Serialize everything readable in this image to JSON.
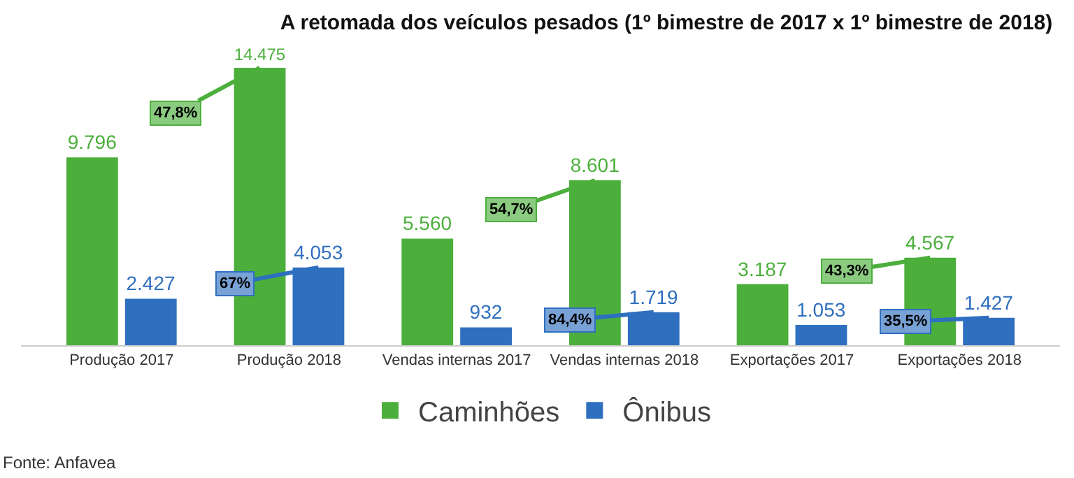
{
  "chart_data": {
    "type": "bar",
    "title": "A retomada dos veículos pesados (1º bimestre de 2017 x 1º bimestre de 2018)",
    "categories": [
      "Produção 2017",
      "Produção 2018",
      "Vendas internas 2017",
      "Vendas internas 2018",
      "Exportações 2017",
      "Exportações 2018"
    ],
    "series": [
      {
        "name": "Caminhões",
        "color": "#4caf3c",
        "values": [
          9796,
          14475,
          5560,
          8601,
          3187,
          4567
        ],
        "value_labels": [
          "9.796",
          "14.475",
          "5.560",
          "8.601",
          "3.187",
          "4.567"
        ]
      },
      {
        "name": "Ônibus",
        "color": "#2f6fbf",
        "values": [
          2427,
          4053,
          932,
          1719,
          1053,
          1427
        ],
        "value_labels": [
          "2.427",
          "4.053",
          "932",
          "1.719",
          "1.053",
          "1.427"
        ]
      }
    ],
    "annotations": [
      "47,8%",
      "67%",
      "54,7%",
      "84,4%",
      "43,3%",
      "35,5%",
      "Fonte: Anfavea"
    ],
    "tick_labels": "x",
    "grid": false,
    "legend": "bottom"
  }
}
